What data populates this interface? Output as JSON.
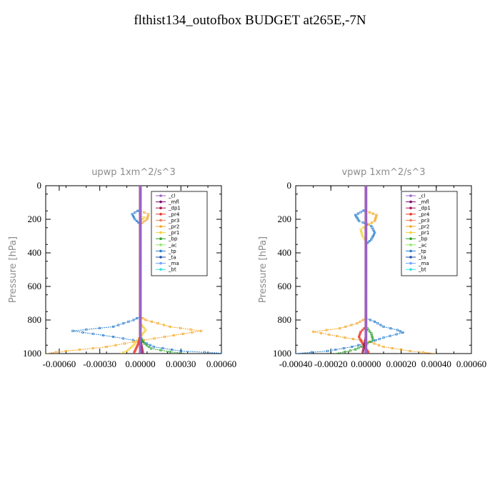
{
  "title": "flthist134_outofbox  BUDGET at265E,-7N",
  "legend_names": [
    "_cl",
    "_mfl",
    "_dp1",
    "_pr4",
    "_pr3",
    "_pr2",
    "_pr1",
    "_bp",
    "_ac",
    "_tp",
    "_ta",
    "_ma",
    "_bt"
  ],
  "colors": {
    "_cl": "#9a63c8",
    "_mfl": "#7a0a6e",
    "_dp1": "#a0184e",
    "_pr4": "#e8352b",
    "_pr3": "#f07a5a",
    "_pr2": "#f5a623",
    "_pr1": "#f2d23a",
    "_bp": "#2aa02a",
    "_ac": "#8ee86a",
    "_tp": "#2a7fd0",
    "_ta": "#1f4faa",
    "_ma": "#6fa3ff",
    "_bt": "#2fe0e0"
  },
  "chart_data": [
    {
      "type": "line",
      "title": "upwp   1xm^2/s^3",
      "xlabel": "",
      "ylabel": "Pressure [hPa]",
      "xlim": [
        -0.0007,
        0.0006
      ],
      "ylim": [
        1000,
        0
      ],
      "xticks": [
        -0.0006,
        -0.0003,
        0.0,
        0.0003,
        0.0006
      ],
      "xtick_labels": [
        "-0.00060",
        "-0.00030",
        "0.00000",
        "0.00030",
        "0.00060"
      ],
      "yticks": [
        0,
        200,
        400,
        600,
        800,
        1000
      ],
      "ytick_labels": [
        "0",
        "200",
        "400",
        "600",
        "800",
        "1000"
      ],
      "legend_position": "top-right",
      "series": [
        {
          "name": "_tp",
          "points": [
            [
              0,
              0
            ],
            [
              0,
              140
            ],
            [
              -6e-05,
              170
            ],
            [
              -4e-05,
              200
            ],
            [
              0,
              230
            ],
            [
              0,
              780
            ],
            [
              -5e-05,
              800
            ],
            [
              -0.0002,
              840
            ],
            [
              -0.0005,
              865
            ],
            [
              -0.0002,
              900
            ],
            [
              2e-05,
              930
            ],
            [
              0.0001,
              960
            ],
            [
              0.0003,
              985
            ],
            [
              0.00065,
              1000
            ]
          ]
        },
        {
          "name": "_pr2",
          "points": [
            [
              0,
              0
            ],
            [
              0,
              150
            ],
            [
              6e-05,
              170
            ],
            [
              5e-05,
              200
            ],
            [
              0,
              230
            ],
            [
              0,
              780
            ],
            [
              4e-05,
              800
            ],
            [
              0.00022,
              840
            ],
            [
              0.00045,
              865
            ],
            [
              0.00018,
              900
            ],
            [
              -5e-05,
              930
            ],
            [
              -0.00025,
              960
            ],
            [
              -0.00055,
              985
            ],
            [
              -0.0007,
              1000
            ]
          ]
        },
        {
          "name": "_pr1",
          "points": [
            [
              0,
              0
            ],
            [
              0,
              180
            ],
            [
              3e-05,
              190
            ],
            [
              0,
              210
            ],
            [
              0,
              820
            ],
            [
              4e-05,
              860
            ],
            [
              0,
              900
            ],
            [
              -5e-05,
              950
            ],
            [
              -0.0001,
              985
            ],
            [
              -0.00015,
              1000
            ]
          ]
        },
        {
          "name": "_bp",
          "points": [
            [
              0,
              0
            ],
            [
              0,
              900
            ],
            [
              3e-05,
              940
            ],
            [
              8e-05,
              970
            ],
            [
              0.00022,
              990
            ],
            [
              0.00035,
              1000
            ]
          ]
        },
        {
          "name": "_pr4",
          "points": [
            [
              0,
              0
            ],
            [
              0,
              900
            ],
            [
              -2e-05,
              950
            ],
            [
              -4e-05,
              985
            ],
            [
              -5e-05,
              1000
            ]
          ]
        },
        {
          "name": "_dp1",
          "points": [
            [
              0,
              0
            ],
            [
              0,
              920
            ],
            [
              1e-05,
              960
            ],
            [
              2e-05,
              1000
            ]
          ]
        },
        {
          "name": "_mfl",
          "points": [
            [
              0,
              0
            ],
            [
              0,
              1000
            ]
          ]
        },
        {
          "name": "_cl",
          "points": [
            [
              0,
              0
            ],
            [
              0,
              1000
            ]
          ]
        }
      ]
    },
    {
      "type": "line",
      "title": "vpwp   1xm^2/s^3",
      "xlabel": "",
      "ylabel": "Pressure [hPa]",
      "xlim": [
        -0.0004,
        0.0006
      ],
      "ylim": [
        1000,
        0
      ],
      "xticks": [
        -0.0004,
        -0.0002,
        0.0,
        0.0002,
        0.0004,
        0.0006
      ],
      "xtick_labels": [
        "-0.00040",
        "-0.00020",
        "0.00000",
        "0.00020",
        "0.00040",
        "0.00060"
      ],
      "yticks": [
        0,
        200,
        400,
        600,
        800,
        1000
      ],
      "ytick_labels": [
        "0",
        "200",
        "400",
        "600",
        "800",
        "1000"
      ],
      "legend_position": "top-right",
      "series": [
        {
          "name": "_tp",
          "points": [
            [
              0,
              0
            ],
            [
              0,
              140
            ],
            [
              -6e-05,
              175
            ],
            [
              -4e-05,
              210
            ],
            [
              3e-05,
              240
            ],
            [
              5e-05,
              280
            ],
            [
              3e-05,
              320
            ],
            [
              0,
              350
            ],
            [
              0,
              790
            ],
            [
              5e-05,
              810
            ],
            [
              0.0001,
              840
            ],
            [
              0.00018,
              860
            ],
            [
              0.00021,
              875
            ],
            [
              0.0001,
              905
            ],
            [
              3e-05,
              930
            ],
            [
              -8e-05,
              960
            ],
            [
              -0.00022,
              985
            ],
            [
              -0.0004,
              1000
            ]
          ]
        },
        {
          "name": "_pr2",
          "points": [
            [
              0,
              0
            ],
            [
              0,
              150
            ],
            [
              6e-05,
              175
            ],
            [
              5e-05,
              210
            ],
            [
              0,
              240
            ],
            [
              0,
              790
            ],
            [
              -5e-05,
              820
            ],
            [
              -0.00015,
              850
            ],
            [
              -0.0003,
              870
            ],
            [
              -0.00012,
              905
            ],
            [
              2e-05,
              930
            ],
            [
              0.0001,
              960
            ],
            [
              0.00025,
              985
            ],
            [
              0.0004,
              1000
            ]
          ]
        },
        {
          "name": "_pr1",
          "points": [
            [
              0,
              0
            ],
            [
              0,
              240
            ],
            [
              -3e-05,
              260
            ],
            [
              -2e-05,
              300
            ],
            [
              0,
              330
            ],
            [
              0,
              1000
            ]
          ]
        },
        {
          "name": "_bp",
          "points": [
            [
              0,
              0
            ],
            [
              0,
              840
            ],
            [
              3e-05,
              880
            ],
            [
              4e-05,
              920
            ],
            [
              -1e-05,
              950
            ],
            [
              -6e-05,
              975
            ],
            [
              -0.00012,
              990
            ],
            [
              -0.00018,
              1000
            ]
          ]
        },
        {
          "name": "_pr4",
          "points": [
            [
              0,
              0
            ],
            [
              0,
              840
            ],
            [
              -3e-05,
              870
            ],
            [
              -4e-05,
              900
            ],
            [
              -2e-05,
              940
            ],
            [
              0,
              970
            ],
            [
              2e-05,
              1000
            ]
          ]
        },
        {
          "name": "_dp1",
          "points": [
            [
              0,
              0
            ],
            [
              0,
              900
            ],
            [
              -1e-05,
              950
            ],
            [
              -2e-05,
              1000
            ]
          ]
        },
        {
          "name": "_mfl",
          "points": [
            [
              0,
              0
            ],
            [
              0,
              1000
            ]
          ]
        },
        {
          "name": "_cl",
          "points": [
            [
              0,
              0
            ],
            [
              0,
              1000
            ]
          ]
        }
      ]
    }
  ]
}
